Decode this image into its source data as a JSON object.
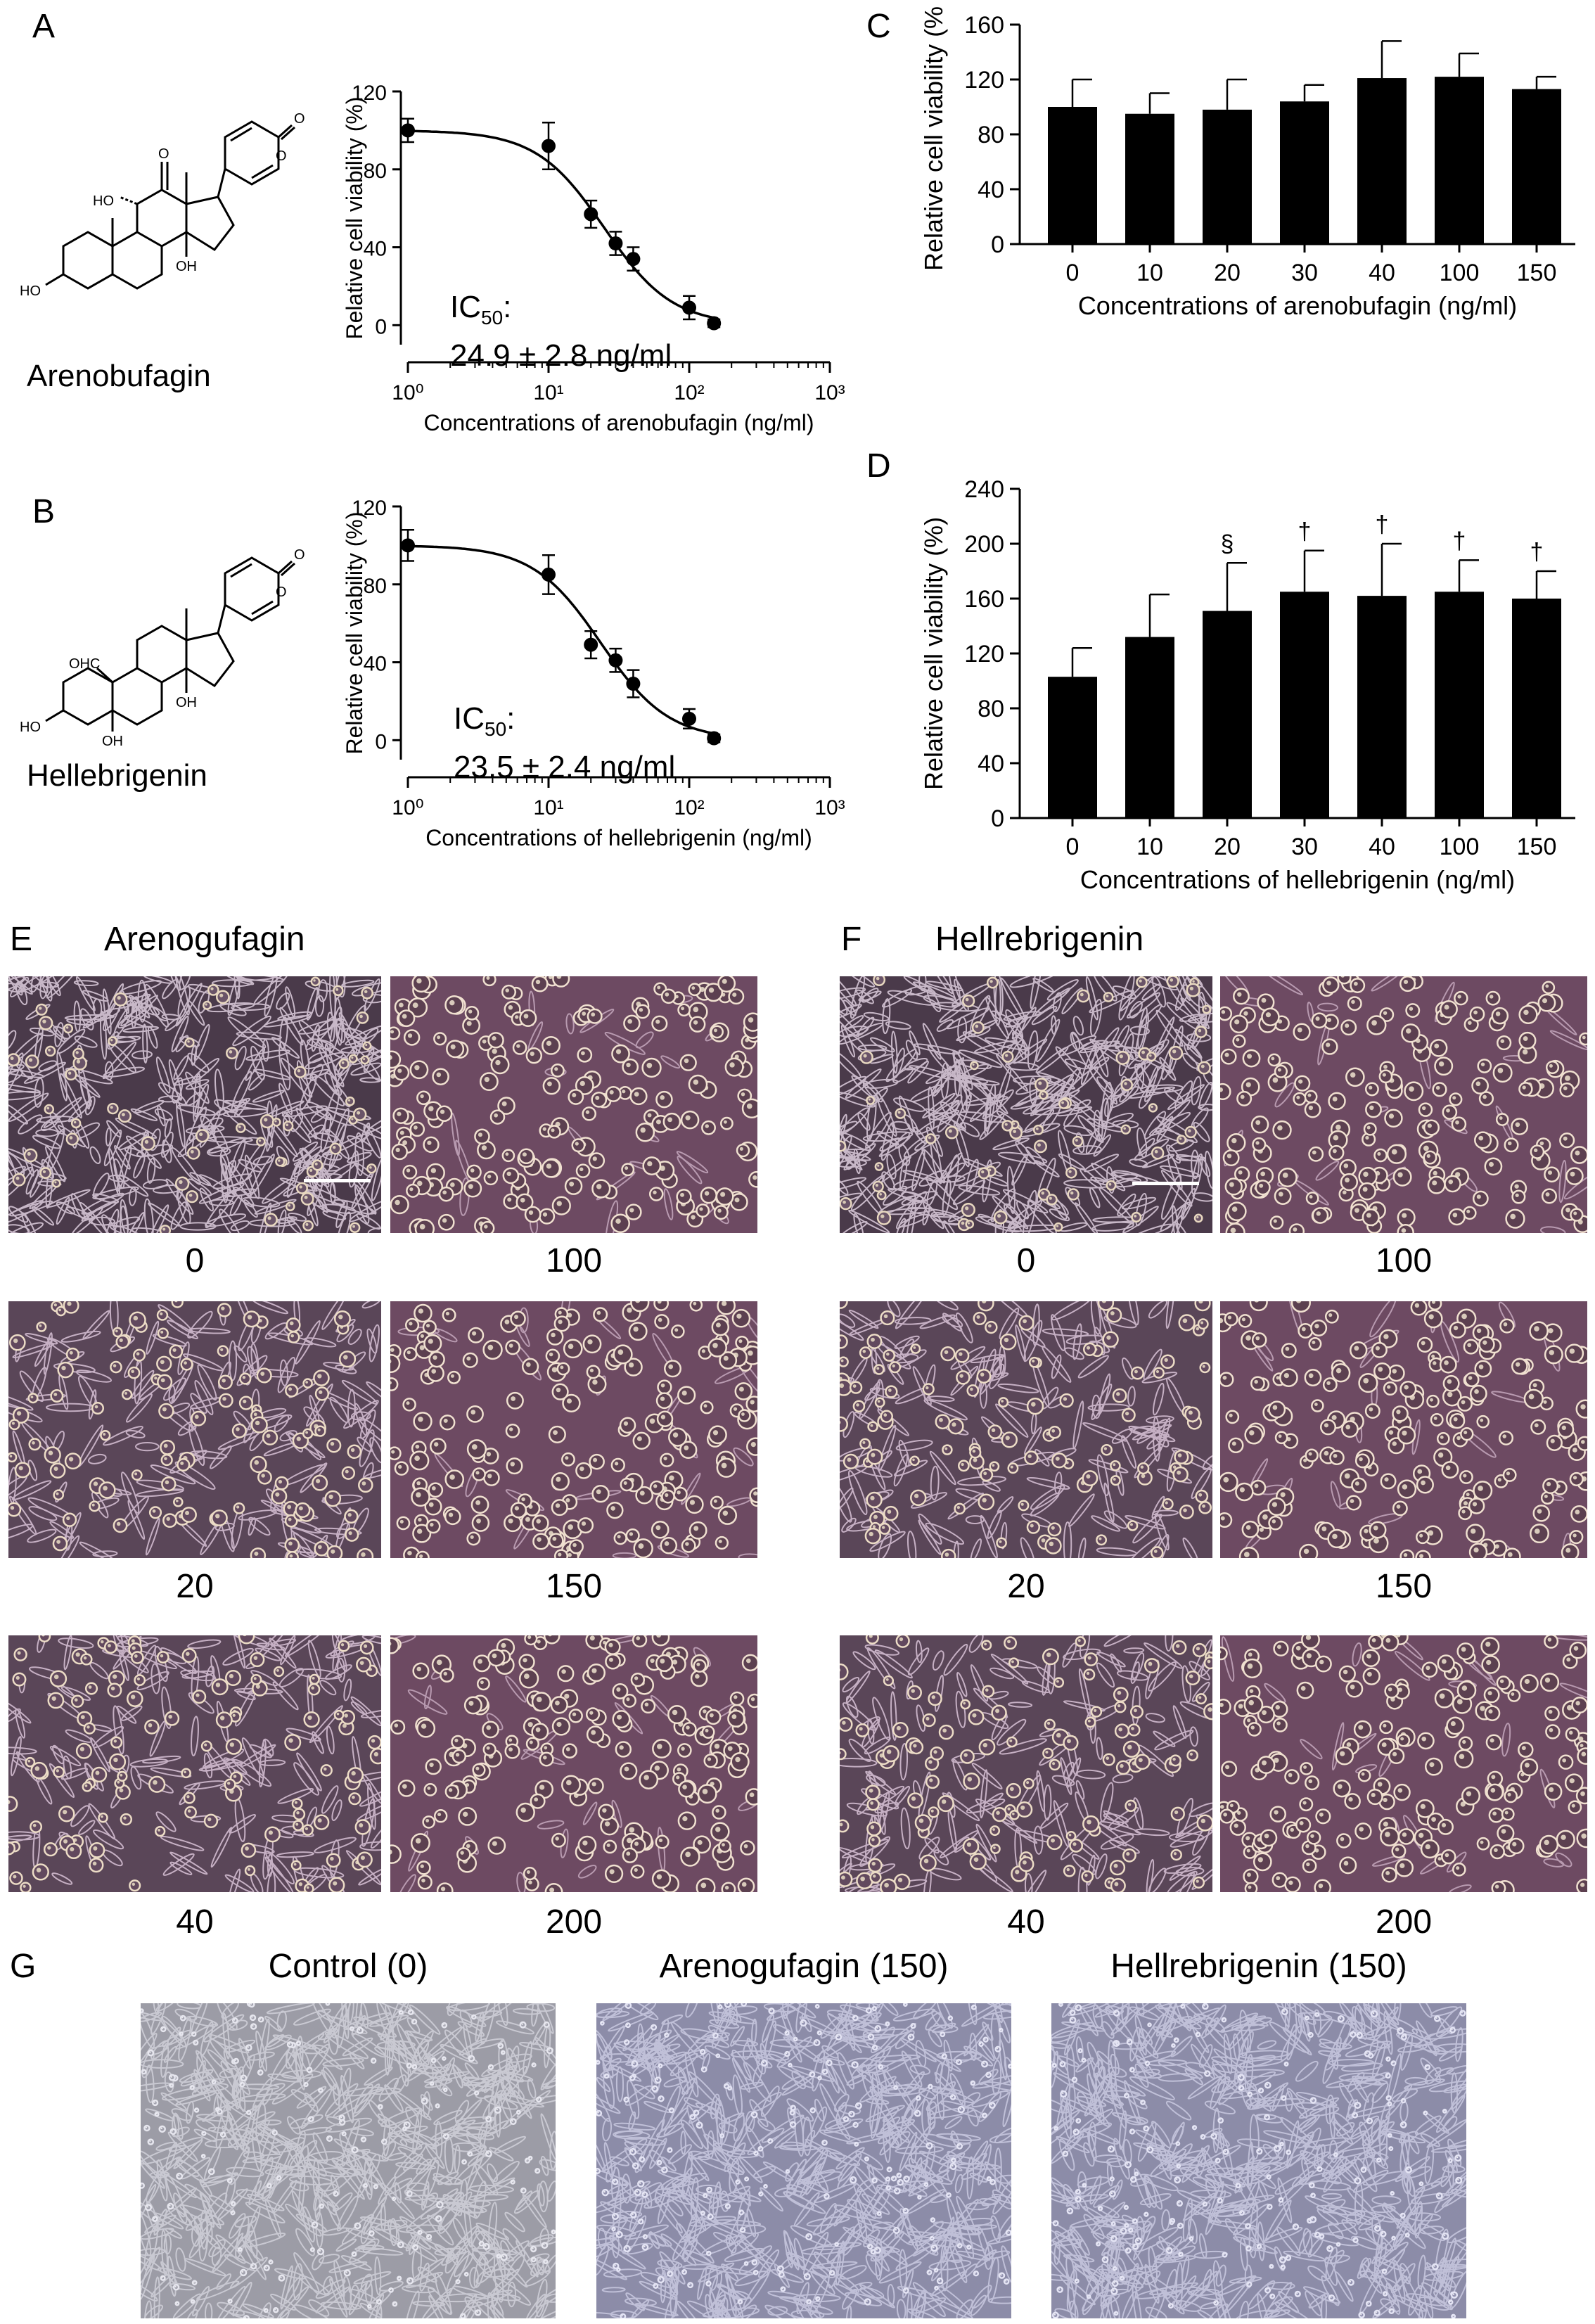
{
  "panels": {
    "A": "A",
    "B": "B",
    "C": "C",
    "D": "D",
    "E": "E",
    "F": "F",
    "G": "G"
  },
  "compounds": {
    "arenobufagin": {
      "name": "Arenobufagin",
      "labels": [
        "HO",
        "O",
        "OH",
        "HO",
        "O",
        "O"
      ],
      "ic50_prefix": "IC",
      "ic50_sub": "50",
      "ic50_suffix": ":",
      "ic50_value": "24.9 ± 2.8 ng/ml"
    },
    "hellebrigenin": {
      "name": "Hellebrigenin",
      "labels": [
        "OHC",
        "OH",
        "HO",
        "OH",
        "O",
        "O"
      ],
      "ic50_prefix": "IC",
      "ic50_sub": "50",
      "ic50_suffix": ":",
      "ic50_value": "23.5 ± 2.4 ng/ml"
    }
  },
  "chart_data": [
    {
      "id": "A",
      "type": "scatter",
      "xscale": "log",
      "xlim": [
        1,
        1000
      ],
      "xticks": [
        "10⁰",
        "10¹",
        "10²",
        "10³"
      ],
      "ylim": [
        -10,
        120
      ],
      "yticks": [
        0,
        40,
        80,
        120
      ],
      "xlabel": "Concentrations of arenobufagin (ng/ml)",
      "ylabel": "Relative cell viability (%)",
      "x": [
        1,
        10,
        20,
        30,
        40,
        100,
        150
      ],
      "y": [
        100,
        92,
        57,
        42,
        34,
        9,
        1
      ],
      "err": [
        6,
        12,
        7,
        6,
        6,
        6,
        2
      ],
      "fit": {
        "top": 100,
        "bottom": 0,
        "ic50": 24.9,
        "hill": 1.8
      }
    },
    {
      "id": "B",
      "type": "scatter",
      "xscale": "log",
      "xlim": [
        1,
        1000
      ],
      "xticks": [
        "10⁰",
        "10¹",
        "10²",
        "10³"
      ],
      "ylim": [
        -10,
        120
      ],
      "yticks": [
        0,
        40,
        80,
        120
      ],
      "xlabel": "Concentrations of hellebrigenin (ng/ml)",
      "ylabel": "Relative cell viability (%)",
      "x": [
        1,
        10,
        20,
        30,
        40,
        100,
        150
      ],
      "y": [
        100,
        85,
        49,
        41,
        29,
        11,
        1
      ],
      "err": [
        8,
        10,
        7,
        6,
        7,
        5,
        2
      ],
      "fit": {
        "top": 100,
        "bottom": 0,
        "ic50": 23.5,
        "hill": 1.8
      }
    },
    {
      "id": "C",
      "type": "bar",
      "categories": [
        "0",
        "10",
        "20",
        "30",
        "40",
        "100",
        "150"
      ],
      "values": [
        100,
        95,
        98,
        104,
        121,
        122,
        113
      ],
      "err": [
        20,
        15,
        22,
        12,
        27,
        17,
        9
      ],
      "marks": [
        "",
        "",
        "",
        "",
        "",
        "",
        ""
      ],
      "ylim": [
        0,
        160
      ],
      "yticks": [
        0,
        40,
        80,
        120,
        160
      ],
      "xlabel": "Concentrations of arenobufagin (ng/ml)",
      "ylabel": "Relative cell viability (%)"
    },
    {
      "id": "D",
      "type": "bar",
      "categories": [
        "0",
        "10",
        "20",
        "30",
        "40",
        "100",
        "150"
      ],
      "values": [
        103,
        132,
        151,
        165,
        162,
        165,
        160
      ],
      "err": [
        21,
        31,
        35,
        30,
        38,
        23,
        20
      ],
      "marks": [
        "",
        "",
        "§",
        "†",
        "†",
        "†",
        "†"
      ],
      "ylim": [
        0,
        240
      ],
      "yticks": [
        0,
        40,
        80,
        120,
        160,
        200,
        240
      ],
      "xlabel": "Concentrations of hellebrigenin (ng/ml)",
      "ylabel": "Relative cell viability (%)"
    }
  ],
  "micrographs": {
    "E": {
      "title": "Arenogufagin",
      "captions": [
        "0",
        "100",
        "20",
        "150",
        "40",
        "200"
      ]
    },
    "F": {
      "title": "Hellrebrigenin",
      "captions": [
        "0",
        "100",
        "20",
        "150",
        "40",
        "200"
      ]
    },
    "G": {
      "titles": [
        "Control (0)",
        "Arenogufagin (150)",
        "Hellrebrigenin (150)"
      ]
    }
  },
  "colors": {
    "bar": "#000000",
    "micro_dark": "#4a3a4a",
    "micro_pink": "#6d4a62",
    "micro_gray": "#9c9ca6",
    "micro_blue": "#8c8ca8"
  }
}
